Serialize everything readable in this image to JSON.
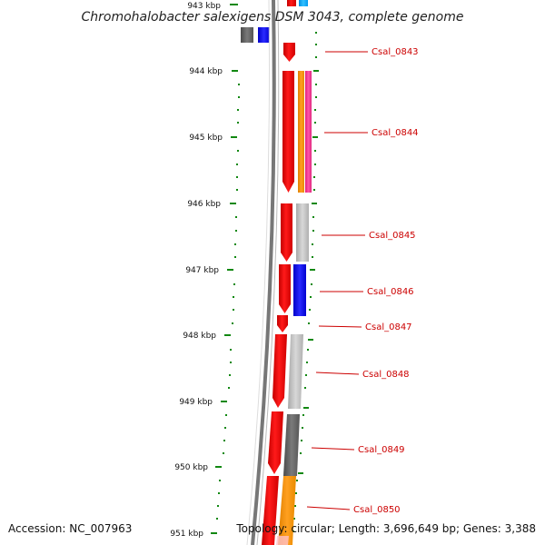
{
  "title": "Chromohalobacter salexigens DSM 3043, complete genome",
  "footer": {
    "accession": "Accession: NC_007963",
    "topology": "Topology: circular; Length: 3,696,649 bp; Genes: 3,388"
  },
  "ticks": [
    {
      "label": "943 kbp"
    },
    {
      "label": "944 kbp"
    },
    {
      "label": "945 kbp"
    },
    {
      "label": "946 kbp"
    },
    {
      "label": "947 kbp"
    },
    {
      "label": "948 kbp"
    },
    {
      "label": "949 kbp"
    },
    {
      "label": "950 kbp"
    },
    {
      "label": "951 kbp"
    }
  ],
  "genes": [
    {
      "label": "Csal_0843"
    },
    {
      "label": "Csal_0844"
    },
    {
      "label": "Csal_0845"
    },
    {
      "label": "Csal_0846"
    },
    {
      "label": "Csal_0847"
    },
    {
      "label": "Csal_0848"
    },
    {
      "label": "Csal_0849"
    },
    {
      "label": "Csal_0850"
    }
  ],
  "colors": {
    "gene_arrow": "#ee0000",
    "label": "#cc0000",
    "tick": "#118811",
    "backbone": "#888888",
    "cog_colors": [
      "#00aaff",
      "#ff9900",
      "#ff3399",
      "#bbbbbb",
      "#0000ee",
      "#666666"
    ]
  }
}
